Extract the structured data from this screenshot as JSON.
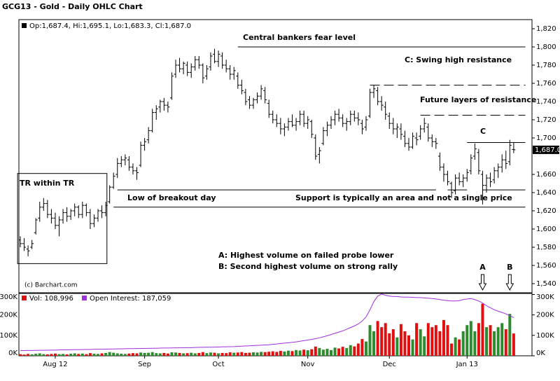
{
  "chart_data": {
    "type": "ohlc",
    "title": "GCG13 - Gold - Daily OHLC Chart",
    "legend_text": "Op:1,687.4, Hi:1,695.1, Lo:1,683.3, Cl:1,687.0",
    "ylim": [
      1530,
      1830
    ],
    "yticks": [
      {
        "value": 1540,
        "label": "1,540"
      },
      {
        "value": 1560,
        "label": "1,560"
      },
      {
        "value": 1580,
        "label": "1,580"
      },
      {
        "value": 1600,
        "label": "1,600"
      },
      {
        "value": 1620,
        "label": "1,620"
      },
      {
        "value": 1640,
        "label": "1,640"
      },
      {
        "value": 1660,
        "label": "1,660"
      },
      {
        "value": 1700,
        "label": "1,700"
      },
      {
        "value": 1720,
        "label": "1,720"
      },
      {
        "value": 1740,
        "label": "1,740"
      },
      {
        "value": 1760,
        "label": "1,760"
      },
      {
        "value": 1780,
        "label": "1,780"
      },
      {
        "value": 1800,
        "label": "1,800"
      },
      {
        "value": 1820,
        "label": "1,820"
      }
    ],
    "last_price": {
      "value": 1687,
      "label": "1,687.0"
    },
    "bar_color": "#000000",
    "categories": [
      null,
      null,
      null,
      null,
      null,
      null,
      null,
      null,
      null,
      "Aug 12",
      null,
      null,
      null,
      null,
      null,
      null,
      null,
      null,
      null,
      null,
      null,
      null,
      null,
      null,
      null,
      null,
      null,
      null,
      null,
      null,
      null,
      null,
      "Sep",
      null,
      null,
      null,
      null,
      null,
      null,
      null,
      null,
      null,
      null,
      null,
      null,
      null,
      null,
      null,
      null,
      null,
      null,
      "Oct",
      null,
      null,
      null,
      null,
      null,
      null,
      null,
      null,
      null,
      null,
      null,
      null,
      null,
      null,
      null,
      null,
      null,
      null,
      null,
      null,
      null,
      null,
      "Nov",
      null,
      null,
      null,
      null,
      null,
      null,
      null,
      null,
      null,
      null,
      null,
      null,
      null,
      null,
      null,
      null,
      null,
      null,
      null,
      null,
      "Dec",
      null,
      null,
      null,
      null,
      null,
      null,
      null,
      null,
      null,
      null,
      null,
      null,
      null,
      null,
      null,
      null,
      null,
      null,
      null,
      "Jan 13",
      null,
      null,
      null,
      null,
      null,
      null,
      null,
      null,
      null,
      null,
      null,
      null
    ],
    "ohlc": [
      [
        1588,
        1592,
        1580,
        1584
      ],
      [
        1584,
        1590,
        1576,
        1580
      ],
      [
        1578,
        1582,
        1570,
        1576
      ],
      [
        1580,
        1588,
        1578,
        1584
      ],
      [
        1596,
        1612,
        1594,
        1610
      ],
      [
        1612,
        1630,
        1608,
        1624
      ],
      [
        1624,
        1634,
        1620,
        1628
      ],
      [
        1628,
        1632,
        1612,
        1616
      ],
      [
        1616,
        1622,
        1606,
        1612
      ],
      [
        1612,
        1618,
        1600,
        1604
      ],
      [
        1604,
        1614,
        1592,
        1610
      ],
      [
        1610,
        1622,
        1606,
        1618
      ],
      [
        1618,
        1624,
        1608,
        1614
      ],
      [
        1614,
        1622,
        1610,
        1620
      ],
      [
        1620,
        1628,
        1614,
        1624
      ],
      [
        1624,
        1626,
        1612,
        1616
      ],
      [
        1616,
        1630,
        1612,
        1626
      ],
      [
        1626,
        1628,
        1614,
        1618
      ],
      [
        1618,
        1622,
        1600,
        1606
      ],
      [
        1606,
        1616,
        1602,
        1612
      ],
      [
        1612,
        1622,
        1608,
        1620
      ],
      [
        1620,
        1626,
        1612,
        1618
      ],
      [
        1618,
        1630,
        1614,
        1626
      ],
      [
        1630,
        1648,
        1628,
        1646
      ],
      [
        1646,
        1662,
        1644,
        1658
      ],
      [
        1660,
        1678,
        1656,
        1672
      ],
      [
        1672,
        1680,
        1668,
        1676
      ],
      [
        1676,
        1682,
        1670,
        1678
      ],
      [
        1676,
        1680,
        1664,
        1668
      ],
      [
        1668,
        1672,
        1660,
        1664
      ],
      [
        1664,
        1668,
        1654,
        1662
      ],
      [
        1670,
        1696,
        1668,
        1692
      ],
      [
        1692,
        1700,
        1686,
        1696
      ],
      [
        1698,
        1712,
        1694,
        1708
      ],
      [
        1708,
        1732,
        1706,
        1728
      ],
      [
        1728,
        1736,
        1720,
        1732
      ],
      [
        1734,
        1742,
        1728,
        1740
      ],
      [
        1740,
        1744,
        1730,
        1736
      ],
      [
        1736,
        1740,
        1728,
        1734
      ],
      [
        1744,
        1772,
        1742,
        1768
      ],
      [
        1770,
        1786,
        1766,
        1780
      ],
      [
        1780,
        1788,
        1772,
        1776
      ],
      [
        1776,
        1784,
        1770,
        1782
      ],
      [
        1780,
        1784,
        1768,
        1772
      ],
      [
        1772,
        1782,
        1766,
        1778
      ],
      [
        1778,
        1790,
        1774,
        1786
      ],
      [
        1786,
        1790,
        1776,
        1780
      ],
      [
        1780,
        1782,
        1760,
        1766
      ],
      [
        1768,
        1780,
        1764,
        1776
      ],
      [
        1778,
        1794,
        1774,
        1790
      ],
      [
        1792,
        1798,
        1782,
        1784
      ],
      [
        1784,
        1796,
        1778,
        1792
      ],
      [
        1790,
        1794,
        1776,
        1780
      ],
      [
        1780,
        1786,
        1772,
        1776
      ],
      [
        1776,
        1780,
        1764,
        1770
      ],
      [
        1770,
        1778,
        1764,
        1774
      ],
      [
        1768,
        1772,
        1754,
        1758
      ],
      [
        1758,
        1764,
        1748,
        1752
      ],
      [
        1750,
        1754,
        1736,
        1740
      ],
      [
        1742,
        1746,
        1732,
        1736
      ],
      [
        1736,
        1744,
        1732,
        1742
      ],
      [
        1742,
        1750,
        1738,
        1746
      ],
      [
        1746,
        1758,
        1742,
        1754
      ],
      [
        1752,
        1756,
        1738,
        1742
      ],
      [
        1738,
        1742,
        1722,
        1726
      ],
      [
        1726,
        1730,
        1716,
        1720
      ],
      [
        1720,
        1726,
        1712,
        1716
      ],
      [
        1716,
        1722,
        1704,
        1710
      ],
      [
        1710,
        1716,
        1702,
        1712
      ],
      [
        1712,
        1722,
        1708,
        1718
      ],
      [
        1718,
        1726,
        1712,
        1714
      ],
      [
        1714,
        1722,
        1708,
        1718
      ],
      [
        1718,
        1730,
        1714,
        1726
      ],
      [
        1726,
        1730,
        1712,
        1716
      ],
      [
        1716,
        1724,
        1710,
        1720
      ],
      [
        1718,
        1720,
        1700,
        1704
      ],
      [
        1700,
        1704,
        1676,
        1680
      ],
      [
        1682,
        1690,
        1672,
        1686
      ],
      [
        1694,
        1712,
        1692,
        1708
      ],
      [
        1708,
        1718,
        1702,
        1714
      ],
      [
        1714,
        1724,
        1710,
        1720
      ],
      [
        1720,
        1730,
        1714,
        1726
      ],
      [
        1726,
        1732,
        1718,
        1722
      ],
      [
        1722,
        1726,
        1712,
        1716
      ],
      [
        1716,
        1722,
        1708,
        1718
      ],
      [
        1718,
        1730,
        1714,
        1726
      ],
      [
        1726,
        1730,
        1718,
        1722
      ],
      [
        1722,
        1728,
        1714,
        1720
      ],
      [
        1716,
        1720,
        1704,
        1710
      ],
      [
        1712,
        1724,
        1708,
        1720
      ],
      [
        1724,
        1754,
        1722,
        1750
      ],
      [
        1750,
        1758,
        1744,
        1754
      ],
      [
        1752,
        1756,
        1736,
        1740
      ],
      [
        1740,
        1746,
        1730,
        1736
      ],
      [
        1734,
        1740,
        1720,
        1726
      ],
      [
        1724,
        1728,
        1710,
        1716
      ],
      [
        1716,
        1722,
        1704,
        1710
      ],
      [
        1710,
        1716,
        1700,
        1712
      ],
      [
        1710,
        1716,
        1698,
        1704
      ],
      [
        1702,
        1708,
        1690,
        1694
      ],
      [
        1694,
        1700,
        1686,
        1690
      ],
      [
        1690,
        1706,
        1688,
        1702
      ],
      [
        1700,
        1706,
        1692,
        1698
      ],
      [
        1702,
        1714,
        1698,
        1710
      ],
      [
        1710,
        1722,
        1706,
        1716
      ],
      [
        1712,
        1716,
        1696,
        1700
      ],
      [
        1700,
        1704,
        1690,
        1696
      ],
      [
        1696,
        1700,
        1688,
        1694
      ],
      [
        1680,
        1684,
        1664,
        1668
      ],
      [
        1668,
        1672,
        1652,
        1660
      ],
      [
        1660,
        1664,
        1648,
        1652
      ],
      [
        1650,
        1652,
        1634,
        1640
      ],
      [
        1642,
        1660,
        1638,
        1656
      ],
      [
        1656,
        1662,
        1648,
        1652
      ],
      [
        1652,
        1660,
        1646,
        1656
      ],
      [
        1656,
        1666,
        1652,
        1662
      ],
      [
        1664,
        1682,
        1660,
        1678
      ],
      [
        1680,
        1694,
        1676,
        1688
      ],
      [
        1684,
        1688,
        1660,
        1664
      ],
      [
        1660,
        1664,
        1627,
        1648
      ],
      [
        1648,
        1660,
        1640,
        1656
      ],
      [
        1656,
        1662,
        1646,
        1652
      ],
      [
        1654,
        1668,
        1650,
        1664
      ],
      [
        1664,
        1672,
        1656,
        1668
      ],
      [
        1668,
        1682,
        1662,
        1676
      ],
      [
        1676,
        1686,
        1666,
        1672
      ],
      [
        1674,
        1698,
        1670,
        1692
      ],
      [
        1687.4,
        1695.1,
        1683.3,
        1687
      ]
    ],
    "levels": [
      {
        "price": 1800,
        "from": 56,
        "to": 130,
        "style": "solid"
      },
      {
        "price": 1758,
        "from": 90,
        "to": 130,
        "style": "dashed"
      },
      {
        "price": 1725,
        "from": 103,
        "to": 130,
        "style": "dashed"
      },
      {
        "price": 1695,
        "from": 115,
        "to": 130,
        "style": "solid"
      },
      {
        "price": 1643,
        "from": 25,
        "to": 107,
        "style": "solid"
      },
      {
        "price": 1643,
        "from": 110,
        "to": 115,
        "style": "solid"
      },
      {
        "price": 1643,
        "from": 119,
        "to": 130,
        "style": "solid"
      },
      {
        "price": 1624,
        "from": 24,
        "to": 130,
        "style": "solid"
      }
    ],
    "box": {
      "from": -0.7,
      "to": 22.3,
      "top": 1661,
      "bottom": 1562
    },
    "annotations": [
      "Central bankers fear level",
      "C: Swing high resistance",
      "Future layers of resistance",
      "C",
      "TR within TR",
      "Low of breakout day",
      "Support is typically an area and not a single price",
      "A: Highest volume on failed probe lower",
      "B: Second highest volume on strong rally"
    ],
    "copyright": "(c) Barchart.com",
    "arrows": [
      {
        "label": "A",
        "index": 119
      },
      {
        "label": "B",
        "index": 126
      }
    ],
    "volume": {
      "legend": "Vol: 108,996",
      "up_color": "#2e8b2e",
      "down_color": "#e01010",
      "ylim": [
        0,
        305000
      ],
      "yticks": [
        {
          "value": 0,
          "label": "0K"
        },
        {
          "value": 100000,
          "label": "100K"
        },
        {
          "value": 200000,
          "label": "200K"
        },
        {
          "value": 300000,
          "label": "300K"
        }
      ],
      "values": [
        8000,
        6000,
        9000,
        7000,
        10000,
        12000,
        8000,
        7000,
        9000,
        11000,
        8000,
        9000,
        7000,
        10000,
        12000,
        9000,
        11000,
        8000,
        13000,
        10000,
        9000,
        12000,
        14000,
        18000,
        15000,
        12000,
        10000,
        9000,
        11000,
        13000,
        12000,
        16000,
        14000,
        15000,
        18000,
        13000,
        12000,
        14000,
        11000,
        17000,
        16000,
        14000,
        12000,
        13000,
        15000,
        12000,
        14000,
        18000,
        13000,
        16000,
        15000,
        12000,
        14000,
        13000,
        17000,
        15000,
        16000,
        18000,
        14000,
        15000,
        17000,
        16000,
        19000,
        18000,
        20000,
        22000,
        19000,
        24000,
        21000,
        25000,
        23000,
        28000,
        26000,
        30000,
        27000,
        32000,
        45000,
        38000,
        30000,
        34000,
        28000,
        40000,
        36000,
        44000,
        38000,
        52000,
        46000,
        60000,
        82000,
        70000,
        150000,
        120000,
        170000,
        140000,
        160000,
        110000,
        130000,
        90000,
        155000,
        120000,
        100000,
        80000,
        160000,
        130000,
        95000,
        160000,
        140000,
        150000,
        120000,
        175000,
        150000,
        60000,
        90000,
        80000,
        120000,
        150000,
        170000,
        120000,
        160000,
        255000,
        140000,
        150000,
        120000,
        140000,
        160000,
        130000,
        205000,
        108996
      ]
    },
    "open_interest": {
      "legend": "Open Interest: 187,059",
      "color": "#a030e0",
      "values": [
        25000,
        25500,
        26000,
        26000,
        26500,
        27000,
        27000,
        27500,
        28000,
        28000,
        28500,
        29000,
        29000,
        29500,
        30000,
        30000,
        30500,
        31000,
        31000,
        31500,
        32000,
        32000,
        32500,
        33000,
        33500,
        34000,
        34000,
        34500,
        35000,
        35000,
        35500,
        36000,
        36000,
        36500,
        37000,
        37000,
        37500,
        38000,
        38000,
        38500,
        39000,
        39000,
        39500,
        40000,
        40000,
        40500,
        41000,
        41500,
        42000,
        42000,
        42500,
        43000,
        43500,
        44000,
        44500,
        45000,
        46000,
        47000,
        48000,
        49000,
        50000,
        51000,
        52000,
        53000,
        54000,
        56000,
        58000,
        60000,
        62000,
        64000,
        66000,
        68000,
        71000,
        74000,
        77000,
        80000,
        84000,
        88000,
        93000,
        98000,
        104000,
        110000,
        116000,
        122000,
        130000,
        138000,
        146000,
        156000,
        170000,
        190000,
        225000,
        265000,
        292000,
        302000,
        296000,
        292000,
        290000,
        290000,
        288000,
        287000,
        287000,
        286000,
        285000,
        285000,
        283000,
        282000,
        280000,
        278000,
        275000,
        272000,
        270000,
        268000,
        268000,
        270000,
        275000,
        278000,
        280000,
        275000,
        268000,
        258000,
        245000,
        235000,
        225000,
        218000,
        212000,
        205000,
        196000,
        187059
      ]
    }
  }
}
